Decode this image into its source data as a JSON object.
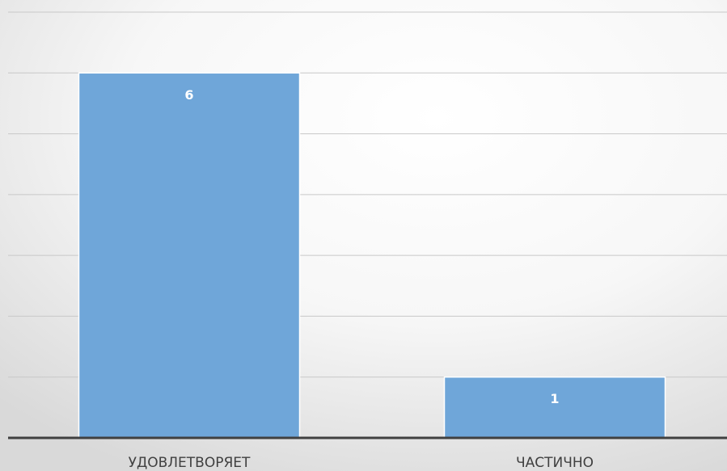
{
  "chart_data": {
    "type": "bar",
    "categories": [
      "УДОВЛЕТВОРЯЕТ",
      "ЧАСТИЧНО"
    ],
    "values": [
      6,
      1
    ],
    "color": "#6fa6d9",
    "ylim": [
      0,
      7
    ],
    "yticks": [
      0,
      1,
      2,
      3,
      4,
      5,
      6,
      7
    ],
    "grid": true
  }
}
